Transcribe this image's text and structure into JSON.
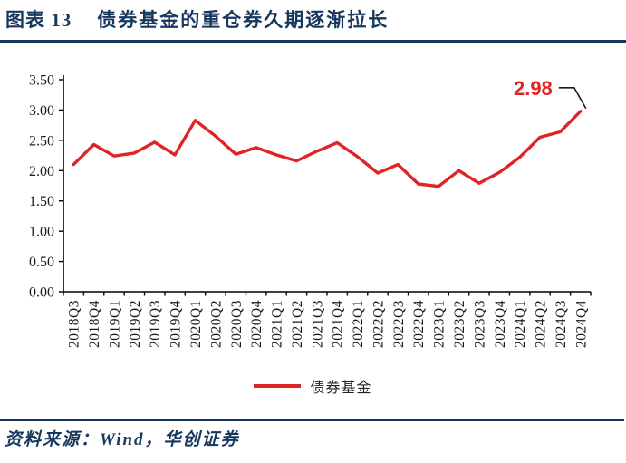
{
  "header": {
    "figure_label": "图表 13",
    "title": "债券基金的重仓券久期逐渐拉长",
    "accent_color": "#17375d"
  },
  "chart_data": {
    "type": "line",
    "title": "",
    "xlabel": "",
    "ylabel": "",
    "categories": [
      "2018Q3",
      "2018Q4",
      "2019Q1",
      "2019Q2",
      "2019Q3",
      "2019Q4",
      "2020Q1",
      "2020Q2",
      "2020Q3",
      "2020Q4",
      "2021Q1",
      "2021Q2",
      "2021Q3",
      "2021Q4",
      "2022Q1",
      "2022Q2",
      "2022Q3",
      "2022Q4",
      "2023Q1",
      "2023Q2",
      "2023Q3",
      "2023Q4",
      "2024Q1",
      "2024Q2",
      "2024Q3",
      "2024Q4"
    ],
    "series": [
      {
        "name": "债券基金",
        "color": "#e02324",
        "values": [
          2.1,
          2.43,
          2.24,
          2.29,
          2.47,
          2.26,
          2.83,
          2.57,
          2.27,
          2.38,
          2.26,
          2.16,
          2.32,
          2.46,
          2.23,
          1.96,
          2.1,
          1.78,
          1.74,
          2.0,
          1.79,
          1.97,
          2.22,
          2.55,
          2.64,
          2.98
        ]
      }
    ],
    "ylim": [
      0,
      3.5
    ],
    "ytick_step": 0.5,
    "ytick_decimals": 2,
    "grid": false,
    "legend_position": "bottom",
    "axis_color": "#000000",
    "tick_label_color": "#1a1a1a",
    "annotation": {
      "text": "2.98",
      "color": "#e02324",
      "target": "last-point",
      "callout_color": "#1a1a1a"
    }
  },
  "legend": {
    "label": "债券基金",
    "swatch_color": "#e02324"
  },
  "footer": {
    "source_text": "资料来源：Wind，华创证券"
  }
}
